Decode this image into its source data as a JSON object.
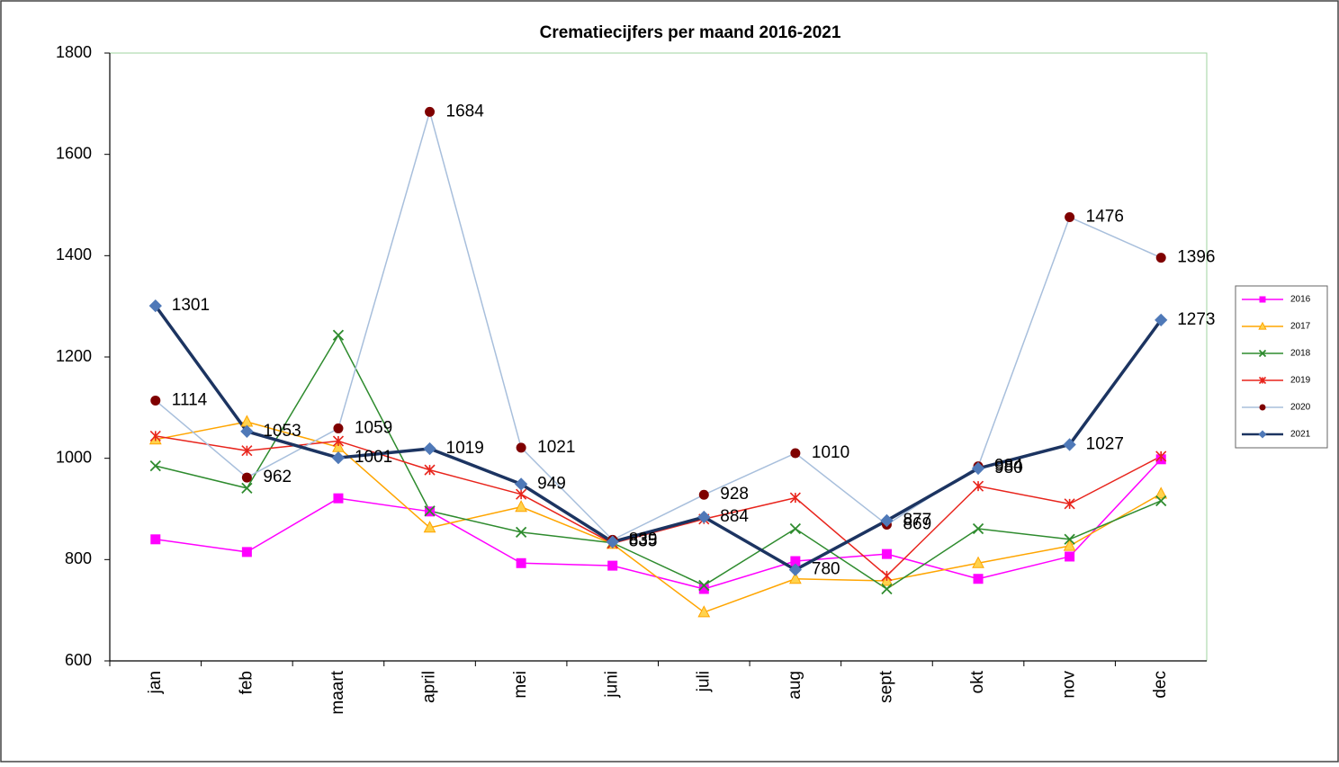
{
  "chart_data": {
    "type": "line",
    "title": "Crematiecijfers per maand 2016-2021",
    "categories": [
      "jan",
      "feb",
      "maart",
      "april",
      "mei",
      "juni",
      "juli",
      "aug",
      "sept",
      "okt",
      "nov",
      "dec"
    ],
    "ylim": [
      600,
      1800
    ],
    "yticks": [
      600,
      800,
      1000,
      1200,
      1400,
      1600,
      1800
    ],
    "grid": false,
    "legend": "right",
    "series": [
      {
        "name": "2016",
        "color": "#ff00ff",
        "marker": "square",
        "marker_color": "#ff00ff",
        "line_width": 1.5,
        "data_labels": false,
        "values": [
          840,
          815,
          921,
          895,
          793,
          788,
          742,
          797,
          811,
          762,
          806,
          998
        ]
      },
      {
        "name": "2017",
        "color": "#ffa500",
        "marker": "triangle",
        "marker_color": "#ffa500",
        "line_width": 1.5,
        "data_labels": false,
        "values": [
          1037,
          1072,
          1022,
          863,
          904,
          831,
          696,
          762,
          758,
          793,
          827,
          930
        ]
      },
      {
        "name": "2018",
        "color": "#2e8b2e",
        "marker": "x",
        "marker_color": "#2e8b2e",
        "line_width": 1.5,
        "data_labels": false,
        "values": [
          985,
          941,
          1243,
          896,
          854,
          833,
          749,
          861,
          742,
          861,
          840,
          916
        ]
      },
      {
        "name": "2019",
        "color": "#e8241c",
        "marker": "star",
        "marker_color": "#e8241c",
        "line_width": 1.5,
        "data_labels": false,
        "values": [
          1044,
          1015,
          1034,
          977,
          929,
          832,
          880,
          922,
          768,
          945,
          910,
          1004
        ]
      },
      {
        "name": "2020",
        "color": "#a8bfdc",
        "marker": "circle",
        "marker_color": "#7f0000",
        "line_width": 1.5,
        "data_labels": true,
        "values": [
          1114,
          962,
          1059,
          1684,
          1021,
          839,
          928,
          1010,
          869,
          984,
          1476,
          1396
        ]
      },
      {
        "name": "2021",
        "color": "#1c3461",
        "marker": "diamond",
        "marker_color": "#4f79b8",
        "line_width": 3.5,
        "data_labels": true,
        "values": [
          1301,
          1053,
          1001,
          1019,
          949,
          835,
          884,
          780,
          877,
          980,
          1027,
          1273
        ]
      }
    ]
  }
}
